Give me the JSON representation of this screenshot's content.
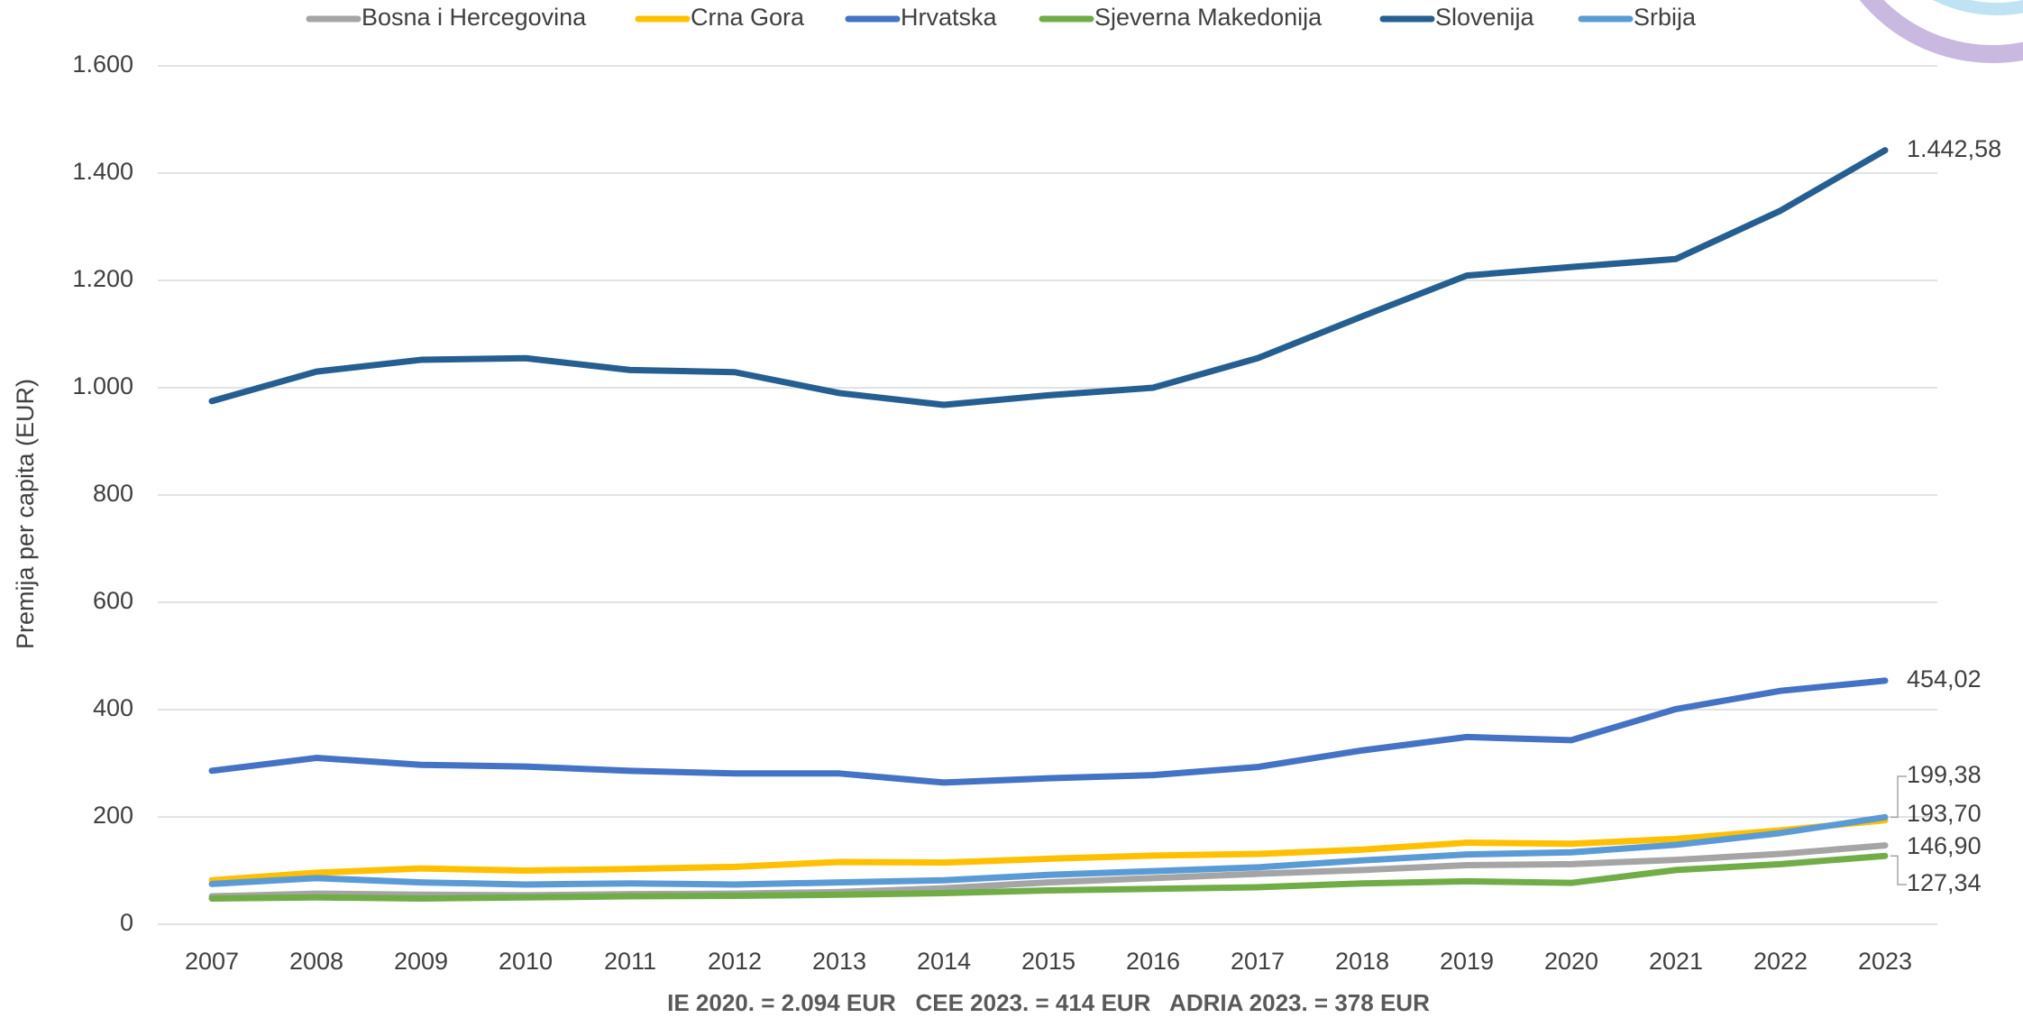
{
  "chart_data": {
    "type": "line",
    "y_label": "Premija per capita (EUR)",
    "annotation": "IE 2020. = 2.094 EUR   CEE 2023. = 414 EUR   ADRIA 2023. = 378 EUR",
    "categories": [
      "2007",
      "2008",
      "2009",
      "2010",
      "2011",
      "2012",
      "2013",
      "2014",
      "2015",
      "2016",
      "2017",
      "2018",
      "2019",
      "2020",
      "2021",
      "2022",
      "2023"
    ],
    "ylim": [
      0,
      1600
    ],
    "yticks": [
      0,
      200,
      400,
      600,
      800,
      {
        "value": 1000,
        "label": "1.000"
      },
      {
        "value": 1200,
        "label": "1.200"
      },
      {
        "value": 1400,
        "label": "1.400"
      },
      {
        "value": 1600,
        "label": "1.600"
      }
    ],
    "grid": true,
    "legend": "top",
    "series": [
      {
        "name": "Bosna i Hercegovina",
        "color": "#a5a5a5",
        "values": [
          52,
          57,
          55,
          54,
          56,
          57,
          60,
          67,
          78,
          86,
          94,
          101,
          110,
          112,
          120,
          131,
          146.9
        ],
        "value_labels": [
          null,
          null,
          null,
          null,
          null,
          null,
          null,
          null,
          null,
          null,
          null,
          null,
          null,
          null,
          null,
          null,
          "146,90"
        ]
      },
      {
        "name": "Crna Gora",
        "color": "#ffc000",
        "values": [
          82,
          96,
          104,
          100,
          103,
          107,
          116,
          115,
          122,
          128,
          131,
          139,
          152,
          150,
          159,
          175,
          193.7
        ],
        "value_labels": [
          null,
          null,
          null,
          null,
          null,
          null,
          null,
          null,
          null,
          null,
          null,
          null,
          null,
          null,
          null,
          null,
          "193,70"
        ]
      },
      {
        "name": "Hrvatska",
        "color": "#4472c4",
        "values": [
          286,
          310,
          297,
          294,
          286,
          281,
          281,
          264,
          272,
          278,
          293,
          324,
          349,
          343,
          401,
          435,
          454.02
        ],
        "value_labels": [
          null,
          null,
          null,
          null,
          null,
          null,
          null,
          null,
          null,
          null,
          null,
          null,
          null,
          null,
          null,
          null,
          "454,02"
        ]
      },
      {
        "name": "Sjeverna Makedonija",
        "color": "#70ad47",
        "values": [
          48,
          50,
          48,
          50,
          52,
          53,
          55,
          58,
          63,
          66,
          69,
          76,
          80,
          77,
          101,
          112,
          127.34
        ],
        "value_labels": [
          null,
          null,
          null,
          null,
          null,
          null,
          null,
          null,
          null,
          null,
          null,
          null,
          null,
          null,
          null,
          null,
          "127,34"
        ]
      },
      {
        "name": "Slovenija",
        "color": "#255e91",
        "values": [
          975,
          1030,
          1052,
          1055,
          1033,
          1029,
          990,
          968,
          986,
          1000,
          1055,
          1133,
          1209,
          1225,
          1240,
          1330,
          1442.58
        ],
        "value_labels": [
          null,
          null,
          null,
          null,
          null,
          null,
          null,
          null,
          null,
          null,
          null,
          null,
          null,
          null,
          null,
          null,
          "1.442,58"
        ]
      },
      {
        "name": "Srbija",
        "color": "#5b9bd5",
        "values": [
          75,
          86,
          78,
          74,
          76,
          74,
          78,
          82,
          92,
          99,
          106,
          119,
          130,
          134,
          148,
          170,
          199.38
        ],
        "value_labels": [
          null,
          null,
          null,
          null,
          null,
          null,
          null,
          null,
          null,
          null,
          null,
          null,
          null,
          null,
          null,
          null,
          "199,38"
        ]
      }
    ]
  }
}
